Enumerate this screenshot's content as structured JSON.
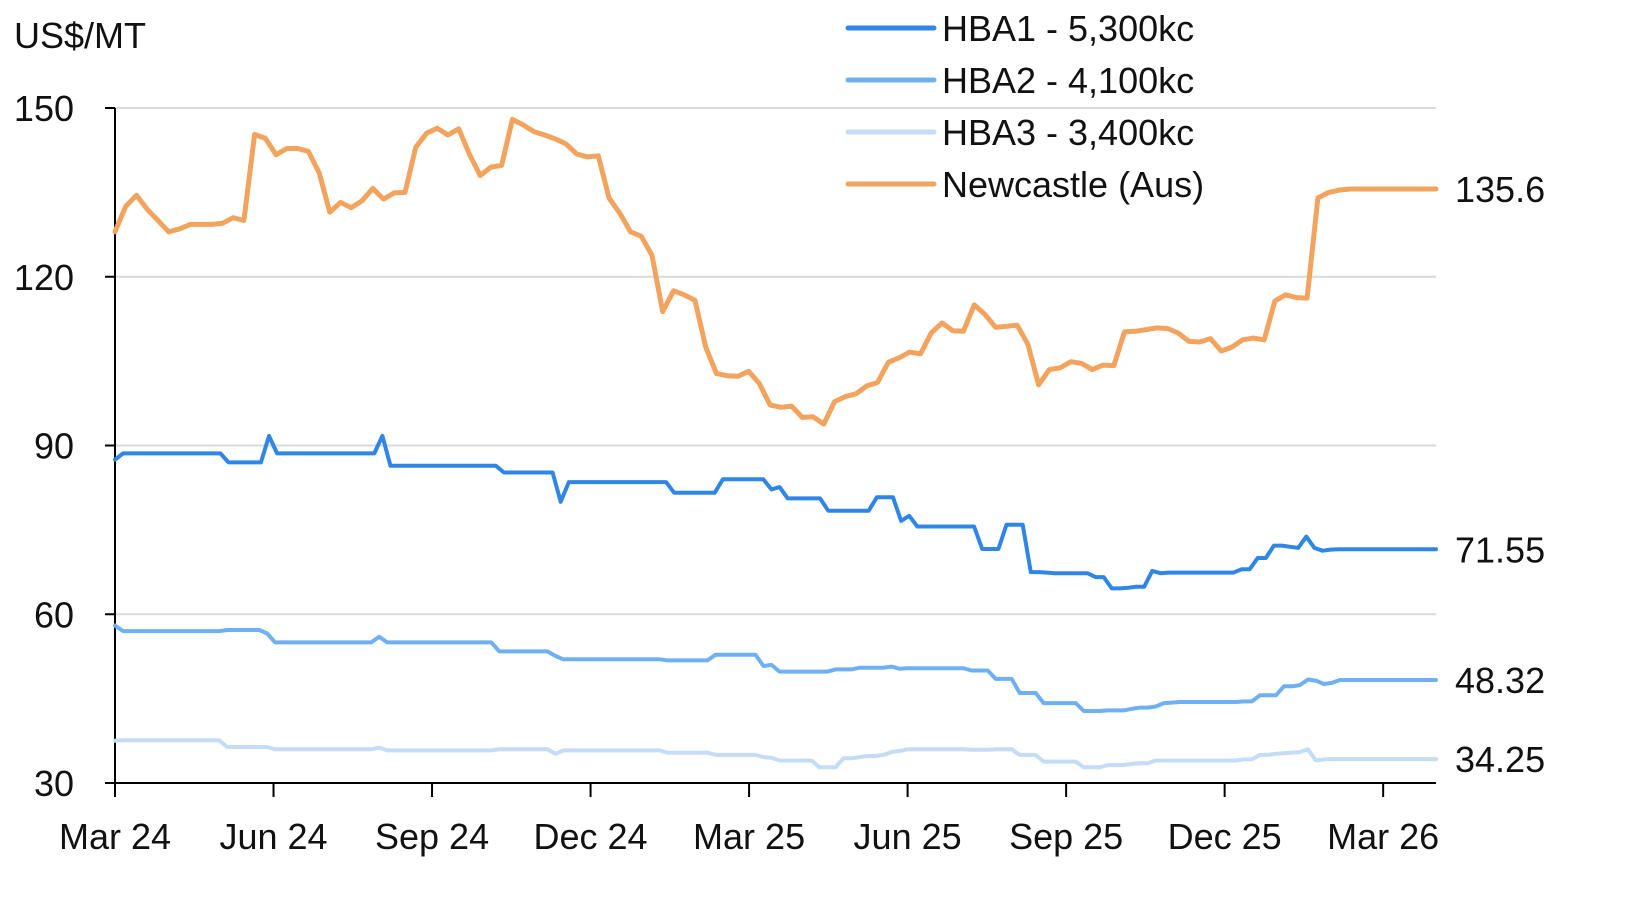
{
  "chart_data": {
    "type": "line",
    "ylabel": "US$/MT",
    "ylim": [
      30,
      150
    ],
    "yticks": [
      30,
      60,
      90,
      120,
      150
    ],
    "x_start": "Mar 24",
    "x_end": "Apr 26",
    "xtick_labels": [
      "Mar 24",
      "Jun 24",
      "Sep 24",
      "Dec 24",
      "Mar 25",
      "Jun 25",
      "Sep 25",
      "Dec 25",
      "Mar 26"
    ],
    "grid": true,
    "legend_position": "top-center",
    "series": [
      {
        "name": "HBA1 - 5,300kc",
        "color": "#2f86e6",
        "end_label": "71.55",
        "values": [
          87.5,
          88.6,
          88.6,
          88.6,
          88.6,
          88.6,
          88.6,
          88.6,
          88.6,
          88.6,
          88.6,
          88.6,
          88.6,
          88.6,
          87.0,
          87.0,
          87.0,
          87.0,
          87.0,
          91.7,
          88.6,
          88.6,
          88.6,
          88.6,
          88.6,
          88.6,
          88.6,
          88.6,
          88.6,
          88.6,
          88.6,
          88.6,
          88.6,
          91.7,
          86.4,
          86.4,
          86.4,
          86.4,
          86.4,
          86.4,
          86.4,
          86.4,
          86.4,
          86.4,
          86.4,
          86.4,
          86.4,
          86.4,
          85.2,
          85.2,
          85.2,
          85.2,
          85.2,
          85.2,
          85.2,
          80.0,
          83.5,
          83.5,
          83.5,
          83.5,
          83.5,
          83.5,
          83.5,
          83.5,
          83.5,
          83.5,
          83.5,
          83.5,
          83.5,
          81.6,
          81.6,
          81.6,
          81.6,
          81.6,
          81.6,
          84.0,
          84.0,
          84.0,
          84.0,
          84.0,
          84.0,
          82.2,
          82.6,
          80.6,
          80.6,
          80.6,
          80.6,
          80.6,
          78.4,
          78.4,
          78.4,
          78.4,
          78.4,
          78.4,
          80.8,
          80.8,
          80.8,
          76.6,
          77.5,
          75.6,
          75.6,
          75.6,
          75.6,
          75.6,
          75.6,
          75.6,
          75.6,
          71.6,
          71.6,
          71.6,
          75.9,
          75.9,
          75.9,
          67.5,
          67.5,
          67.4,
          67.3,
          67.3,
          67.3,
          67.3,
          67.3,
          66.6,
          66.6,
          64.6,
          64.6,
          64.7,
          64.9,
          64.9,
          67.7,
          67.3,
          67.4,
          67.4,
          67.4,
          67.4,
          67.4,
          67.4,
          67.4,
          67.4,
          67.4,
          68.0,
          68.0,
          70.0,
          70.0,
          72.2,
          72.2,
          72.0,
          71.8,
          73.8,
          71.8,
          71.3,
          71.5,
          71.55,
          71.55,
          71.55,
          71.55,
          71.55,
          71.55,
          71.55,
          71.55,
          71.55,
          71.55,
          71.55,
          71.55,
          71.55
        ]
      },
      {
        "name": "HBA2 - 4,100kc",
        "color": "#6fb0f2",
        "end_label": "48.32",
        "values": [
          58.0,
          57.0,
          57.0,
          57.0,
          57.0,
          57.0,
          57.0,
          57.0,
          57.0,
          57.0,
          57.0,
          57.0,
          57.0,
          57.0,
          57.2,
          57.2,
          57.2,
          57.2,
          57.2,
          56.6,
          55.0,
          55.0,
          55.0,
          55.0,
          55.0,
          55.0,
          55.0,
          55.0,
          55.0,
          55.0,
          55.0,
          55.0,
          55.0,
          56.0,
          55.0,
          55.0,
          55.0,
          55.0,
          55.0,
          55.0,
          55.0,
          55.0,
          55.0,
          55.0,
          55.0,
          55.0,
          55.0,
          55.0,
          53.4,
          53.4,
          53.4,
          53.4,
          53.4,
          53.4,
          53.4,
          52.6,
          52.0,
          52.0,
          52.0,
          52.0,
          52.0,
          52.0,
          52.0,
          52.0,
          52.0,
          52.0,
          52.0,
          52.0,
          52.0,
          51.8,
          51.8,
          51.8,
          51.8,
          51.8,
          51.8,
          52.8,
          52.8,
          52.8,
          52.8,
          52.8,
          52.8,
          50.8,
          51.0,
          49.8,
          49.8,
          49.8,
          49.8,
          49.8,
          49.8,
          49.8,
          50.2,
          50.2,
          50.2,
          50.5,
          50.5,
          50.5,
          50.5,
          50.7,
          50.3,
          50.4,
          50.4,
          50.4,
          50.4,
          50.4,
          50.4,
          50.4,
          50.4,
          50.0,
          50.0,
          50.0,
          48.5,
          48.5,
          48.5,
          46.0,
          46.0,
          46.0,
          44.2,
          44.2,
          44.2,
          44.2,
          44.2,
          42.8,
          42.8,
          42.8,
          42.9,
          42.9,
          42.9,
          43.2,
          43.4,
          43.4,
          43.6,
          44.2,
          44.3,
          44.4,
          44.4,
          44.4,
          44.4,
          44.4,
          44.4,
          44.4,
          44.4,
          44.5,
          44.5,
          45.6,
          45.6,
          45.6,
          47.2,
          47.2,
          47.4,
          48.4,
          48.2,
          47.6,
          47.8,
          48.32,
          48.32,
          48.32,
          48.32,
          48.32,
          48.32,
          48.32,
          48.32,
          48.32,
          48.32,
          48.32,
          48.32,
          48.32
        ]
      },
      {
        "name": "HBA3 - 3,400kc",
        "color": "#c4dcf5",
        "end_label": "34.25",
        "values": [
          37.5,
          37.6,
          37.6,
          37.6,
          37.6,
          37.6,
          37.6,
          37.6,
          37.6,
          37.6,
          37.6,
          37.6,
          37.6,
          37.6,
          36.4,
          36.4,
          36.4,
          36.4,
          36.4,
          36.4,
          36.0,
          36.0,
          36.0,
          36.0,
          36.0,
          36.0,
          36.0,
          36.0,
          36.0,
          36.0,
          36.0,
          36.0,
          36.0,
          36.3,
          35.8,
          35.8,
          35.8,
          35.8,
          35.8,
          35.8,
          35.8,
          35.8,
          35.8,
          35.8,
          35.8,
          35.8,
          35.8,
          35.8,
          36.0,
          36.0,
          36.0,
          36.0,
          36.0,
          36.0,
          36.0,
          35.2,
          35.8,
          35.8,
          35.8,
          35.8,
          35.8,
          35.8,
          35.8,
          35.8,
          35.8,
          35.8,
          35.8,
          35.8,
          35.8,
          35.4,
          35.4,
          35.4,
          35.4,
          35.4,
          35.4,
          35.0,
          35.0,
          35.0,
          35.0,
          35.0,
          35.0,
          34.6,
          34.5,
          34.0,
          34.0,
          34.0,
          34.0,
          34.0,
          32.8,
          32.8,
          32.8,
          34.4,
          34.4,
          34.6,
          34.8,
          34.8,
          35.0,
          35.5,
          35.7,
          36.0,
          36.0,
          36.0,
          36.0,
          36.0,
          36.0,
          36.0,
          36.0,
          35.9,
          35.9,
          35.9,
          36.0,
          36.0,
          36.0,
          35.0,
          35.0,
          35.0,
          33.8,
          33.8,
          33.8,
          33.8,
          33.8,
          32.8,
          32.8,
          32.8,
          33.2,
          33.2,
          33.2,
          33.4,
          33.5,
          33.5,
          34.0,
          34.0,
          34.0,
          34.0,
          34.0,
          34.0,
          34.0,
          34.0,
          34.0,
          34.0,
          34.0,
          34.2,
          34.2,
          35.0,
          35.0,
          35.2,
          35.3,
          35.4,
          35.5,
          36.0,
          34.0,
          34.2,
          34.25,
          34.25,
          34.25,
          34.25,
          34.25,
          34.25,
          34.25,
          34.25,
          34.25,
          34.25,
          34.25,
          34.25,
          34.25,
          34.25
        ]
      },
      {
        "name": "Newcastle (Aus)",
        "color": "#f2a35e",
        "end_label": "135.6",
        "values": [
          128.0,
          132.5,
          134.5,
          132.0,
          130.0,
          128.0,
          128.5,
          129.3,
          129.3,
          129.3,
          129.5,
          130.5,
          130.0,
          145.3,
          144.6,
          141.7,
          142.8,
          142.8,
          142.3,
          138.5,
          131.5,
          133.2,
          132.3,
          133.5,
          135.7,
          133.8,
          134.9,
          135.0,
          143.0,
          145.5,
          146.4,
          145.2,
          146.3,
          141.8,
          138.0,
          139.5,
          139.8,
          148.0,
          147.0,
          145.8,
          145.2,
          144.5,
          143.6,
          141.8,
          141.3,
          141.5,
          134.0,
          131.3,
          128.0,
          127.2,
          123.8,
          113.8,
          117.5,
          116.8,
          115.8,
          107.5,
          102.8,
          102.4,
          102.3,
          103.2,
          101.0,
          97.2,
          96.8,
          97.0,
          95.0,
          95.1,
          93.8,
          97.8,
          98.7,
          99.2,
          100.6,
          101.2,
          104.8,
          105.6,
          106.6,
          106.3,
          110.0,
          111.8,
          110.4,
          110.3,
          115.0,
          113.3,
          111.0,
          111.2,
          111.4,
          108.0,
          100.8,
          103.5,
          103.8,
          104.9,
          104.6,
          103.5,
          104.3,
          104.2,
          110.2,
          110.3,
          110.6,
          110.9,
          110.8,
          110.0,
          108.5,
          108.4,
          109.0,
          106.8,
          107.5,
          108.8,
          109.1,
          108.8,
          115.7,
          116.8,
          116.3,
          116.2,
          134.0,
          135.0,
          135.4,
          135.6,
          135.6,
          135.6,
          135.6,
          135.6,
          135.6,
          135.6,
          135.6,
          135.6
        ]
      }
    ]
  }
}
